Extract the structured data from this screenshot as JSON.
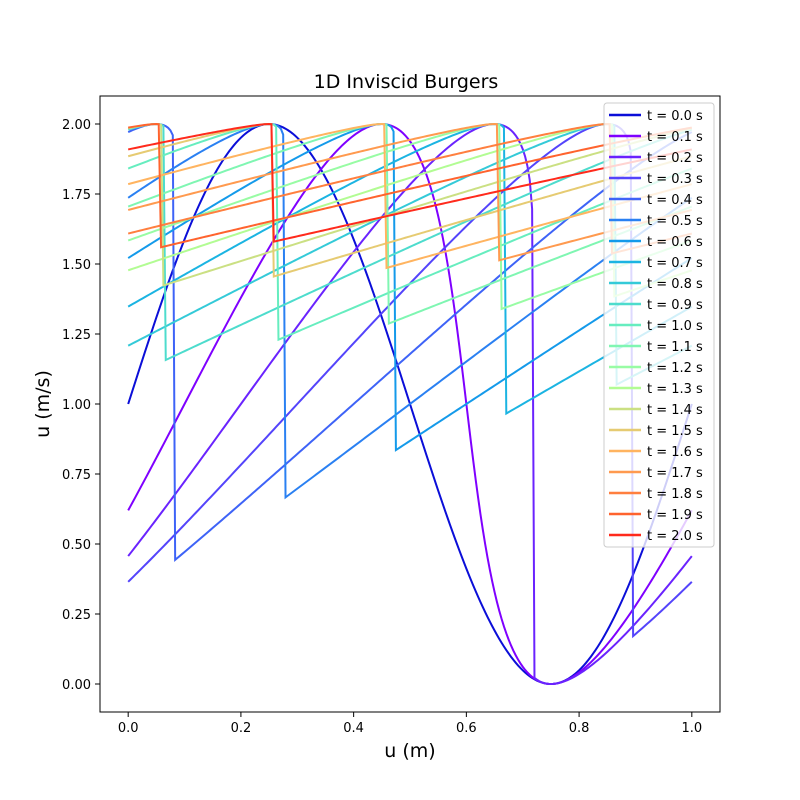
{
  "chart_data": {
    "type": "line",
    "title": "1D Inviscid Burgers",
    "xlabel": "u (m)",
    "ylabel": "u (m/s)",
    "xlim": [
      -0.05,
      1.05
    ],
    "ylim": [
      -0.1,
      2.1
    ],
    "xticks": [
      "0.0",
      "0.2",
      "0.4",
      "0.6",
      "0.8",
      "1.0"
    ],
    "xtick_values": [
      0,
      0.2,
      0.4,
      0.6,
      0.8,
      1.0
    ],
    "yticks": [
      "0.00",
      "0.25",
      "0.50",
      "0.75",
      "1.00",
      "1.25",
      "1.50",
      "1.75",
      "2.00"
    ],
    "ytick_values": [
      0,
      0.25,
      0.5,
      0.75,
      1.0,
      1.25,
      1.5,
      1.75,
      2.0
    ],
    "grid": false,
    "legend": "top-right",
    "initial_condition": "u(x,0) = 1 + sin(2πx), periodic on [0,1]",
    "colormap": "rainbow",
    "series": [
      {
        "name": "t = 0.0 s",
        "t": 0.0,
        "color": "#0b0ed8"
      },
      {
        "name": "t = 0.1 s",
        "t": 0.1,
        "color": "#7f00ff"
      },
      {
        "name": "t = 0.2 s",
        "t": 0.2,
        "color": "#6a23fe"
      },
      {
        "name": "t = 0.3 s",
        "t": 0.3,
        "color": "#5444fb"
      },
      {
        "name": "t = 0.4 s",
        "t": 0.4,
        "color": "#3e63f7"
      },
      {
        "name": "t = 0.5 s",
        "t": 0.5,
        "color": "#2a80f2"
      },
      {
        "name": "t = 0.6 s",
        "t": 0.6,
        "color": "#149aea"
      },
      {
        "name": "t = 0.7 s",
        "t": 0.7,
        "color": "#1bb4e2"
      },
      {
        "name": "t = 0.8 s",
        "t": 0.8,
        "color": "#34cad8"
      },
      {
        "name": "t = 0.9 s",
        "t": 0.9,
        "color": "#4ddccd"
      },
      {
        "name": "t = 1.0 s",
        "t": 1.0,
        "color": "#66edbf"
      },
      {
        "name": "t = 1.1 s",
        "t": 1.1,
        "color": "#7ff6b2"
      },
      {
        "name": "t = 1.2 s",
        "t": 1.2,
        "color": "#98fca4"
      },
      {
        "name": "t = 1.3 s",
        "t": 1.3,
        "color": "#b2fc93"
      },
      {
        "name": "t = 1.4 s",
        "t": 1.4,
        "color": "#cbe083"
      },
      {
        "name": "t = 1.5 s",
        "t": 1.5,
        "color": "#e6cb72"
      },
      {
        "name": "t = 1.6 s",
        "t": 1.6,
        "color": "#ffb460"
      },
      {
        "name": "t = 1.7 s",
        "t": 1.7,
        "color": "#ff9a4f"
      },
      {
        "name": "t = 1.8 s",
        "t": 1.8,
        "color": "#ff7f3f"
      },
      {
        "name": "t = 1.9 s",
        "t": 1.9,
        "color": "#ff632e"
      },
      {
        "name": "t = 2.0 s",
        "t": 2.0,
        "color": "#ff2a1c"
      }
    ]
  }
}
